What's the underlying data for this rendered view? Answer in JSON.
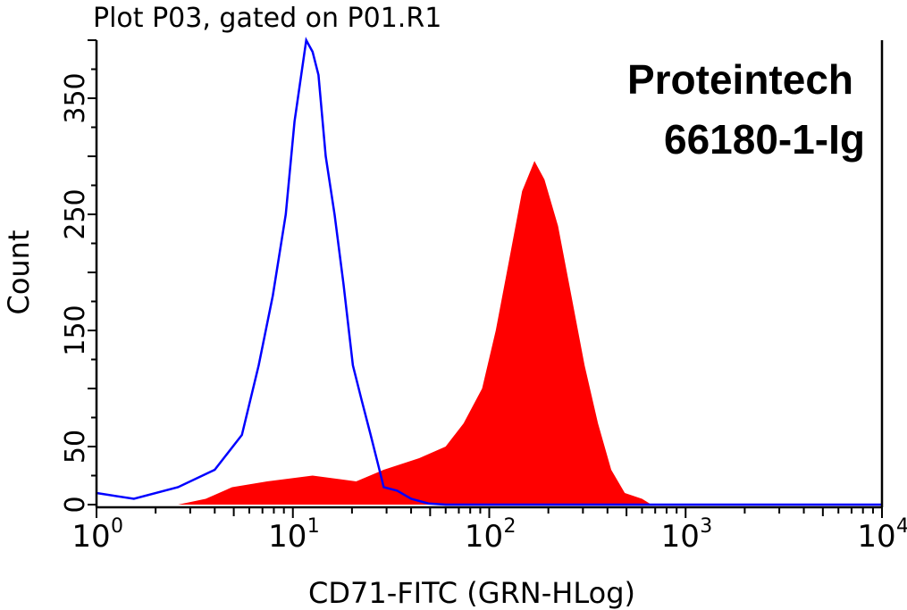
{
  "chart_data": {
    "type": "area",
    "title": "Plot P03, gated on P01.R1",
    "xlabel": "CD71-FITC (GRN-HLog)",
    "ylabel": "Count",
    "x_scale": "log",
    "xlim": [
      1,
      10000
    ],
    "ylim": [
      0,
      400
    ],
    "x_tick_labels": [
      {
        "base": "10",
        "exp": "0"
      },
      {
        "base": "10",
        "exp": "1"
      },
      {
        "base": "10",
        "exp": "2"
      },
      {
        "base": "10",
        "exp": "3"
      },
      {
        "base": "10",
        "exp": "4"
      }
    ],
    "y_tick_labels": [
      "0",
      "50",
      "150",
      "250",
      "350"
    ],
    "y_tick_values": [
      0,
      50,
      150,
      250,
      350
    ],
    "grid": false,
    "annotations": [
      "Proteintech",
      "66180-1-Ig"
    ],
    "series": [
      {
        "style": "filled",
        "color": "#ff0000",
        "x": [
          1,
          2.6,
          3.6,
          4.9,
          7.4,
          12.6,
          21,
          29,
          44,
          60,
          74,
          92,
          108,
          126,
          147,
          170,
          191,
          224,
          262,
          306,
          358,
          418,
          490,
          600,
          670,
          10000
        ],
        "y": [
          0,
          0,
          5,
          15,
          20,
          25,
          20,
          30,
          40,
          50,
          70,
          100,
          150,
          210,
          270,
          296,
          280,
          240,
          180,
          120,
          70,
          30,
          10,
          5,
          0,
          0
        ]
      },
      {
        "style": "line",
        "color": "#0000ff",
        "x": [
          1,
          1.55,
          2.6,
          4,
          5.5,
          6.7,
          7.9,
          9.2,
          10.2,
          11.7,
          12.6,
          13.5,
          14.7,
          16.3,
          18.1,
          20.2,
          22.4,
          24.9,
          27.6,
          29,
          34,
          40,
          49,
          60,
          10000
        ],
        "y": [
          10,
          5,
          15,
          30,
          60,
          120,
          180,
          250,
          330,
          400,
          390,
          370,
          300,
          250,
          190,
          120,
          90,
          60,
          30,
          15,
          12,
          5,
          1,
          0,
          0
        ]
      }
    ]
  }
}
